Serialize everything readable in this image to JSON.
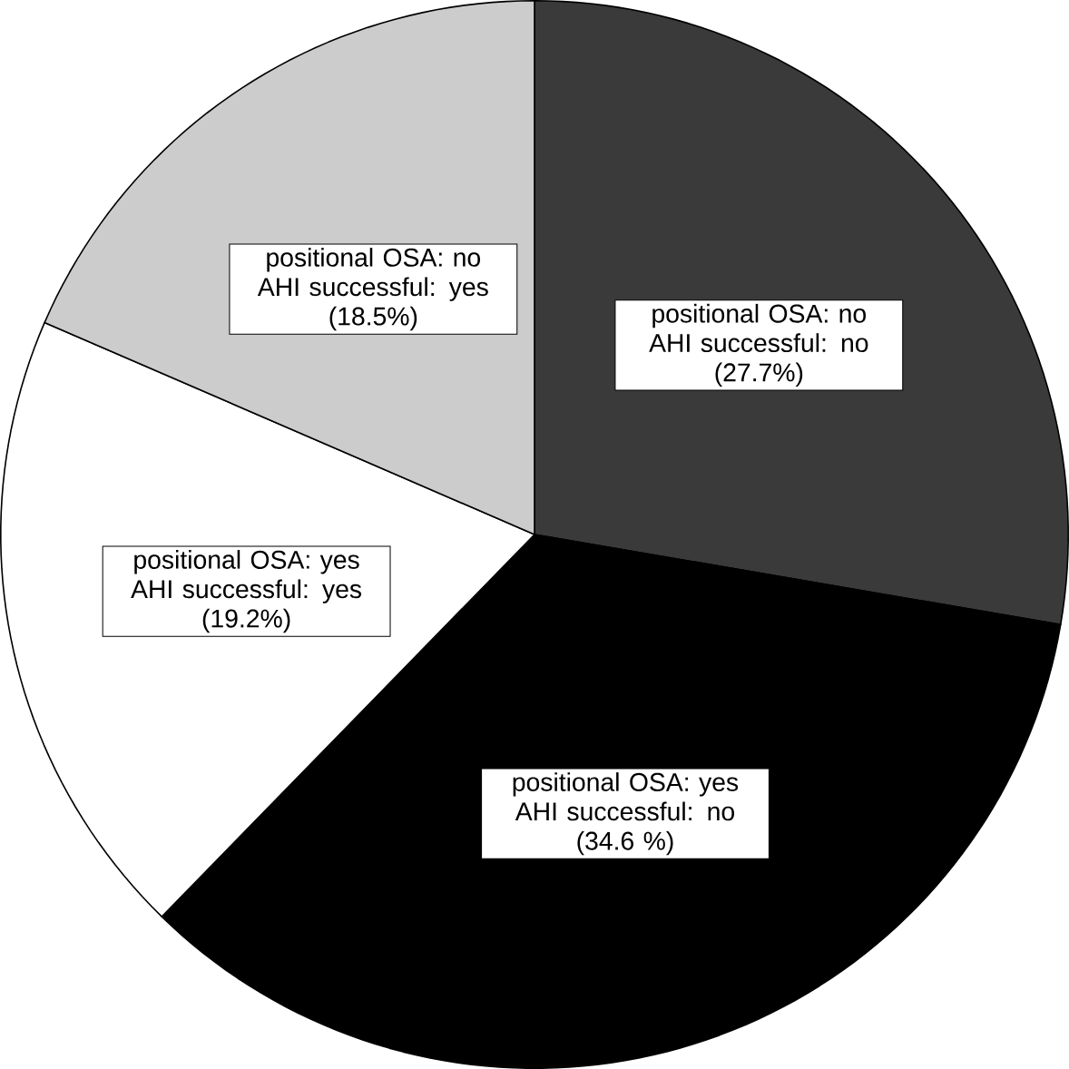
{
  "chart_data": {
    "type": "pie",
    "categories": [
      "positional OSA: no AHI successful: no",
      "positional OSA: yes AHI successful: no",
      "positional OSA: yes AHI successful: yes",
      "positional OSA: no AHI successful: yes"
    ],
    "values": [
      27.7,
      34.6,
      19.2,
      18.5
    ],
    "value_labels": [
      "(27.7%)",
      "(34.6 %)",
      "(19.2%)",
      "(18.5%)"
    ],
    "colors": [
      "#3a3a3a",
      "#000000",
      "#ffffff",
      "#cccccc"
    ]
  }
}
